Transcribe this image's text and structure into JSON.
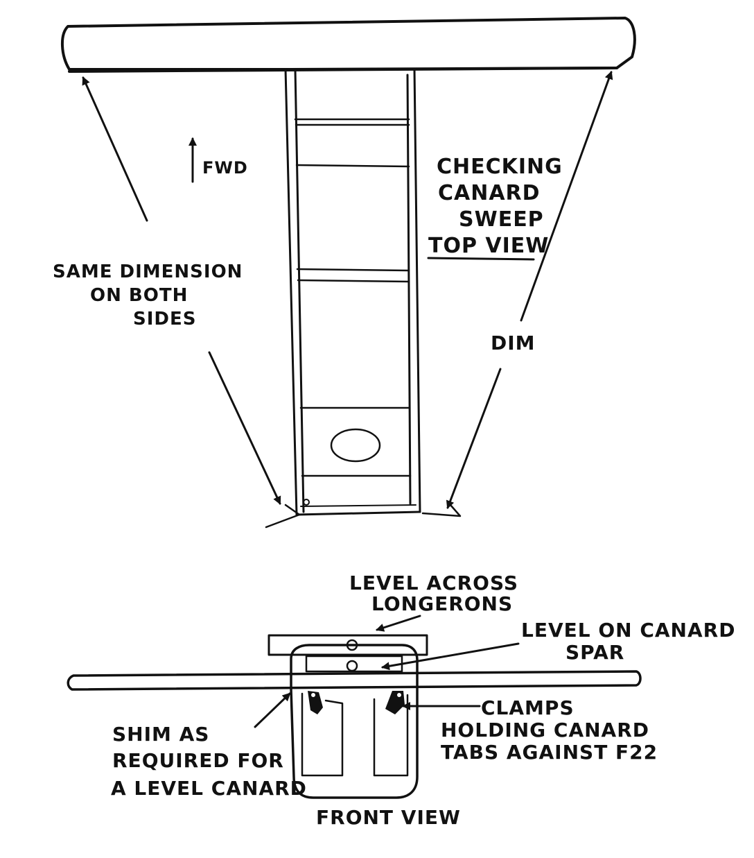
{
  "top_view": {
    "title_lines": [
      "CHECKING",
      "CANARD",
      "SWEEP"
    ],
    "subtitle": "TOP VIEW",
    "fwd_label": "FWD",
    "same_dim_lines": [
      "SAME DIMENSION",
      "ON BOTH",
      "SIDES"
    ],
    "dim_label": "DIM"
  },
  "front_view": {
    "level_longerons_lines": [
      "LEVEL ACROSS",
      "LONGERONS"
    ],
    "level_spar_lines": [
      "LEVEL ON CANARD",
      "SPAR"
    ],
    "clamps_lines": [
      "CLAMPS",
      "HOLDING CANARD",
      "TABS AGAINST F22"
    ],
    "shim_lines": [
      "SHIM AS",
      "REQUIRED FOR",
      "A LEVEL CANARD"
    ],
    "caption": "FRONT VIEW"
  }
}
